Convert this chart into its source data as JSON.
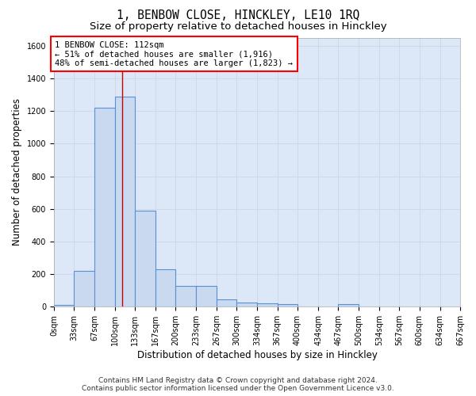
{
  "title": "1, BENBOW CLOSE, HINCKLEY, LE10 1RQ",
  "subtitle": "Size of property relative to detached houses in Hinckley",
  "xlabel": "Distribution of detached houses by size in Hinckley",
  "ylabel": "Number of detached properties",
  "bin_edges": [
    0,
    33,
    67,
    100,
    133,
    167,
    200,
    233,
    267,
    300,
    334,
    367,
    400,
    434,
    467,
    500,
    534,
    567,
    600,
    634,
    667
  ],
  "bar_heights": [
    10,
    220,
    1220,
    1290,
    590,
    230,
    130,
    130,
    45,
    25,
    20,
    15,
    0,
    0,
    15,
    0,
    0,
    0,
    0,
    0
  ],
  "bar_facecolor": "#c9d9f0",
  "bar_edgecolor": "#5b8fd4",
  "bar_linewidth": 0.8,
  "grid_color": "#d0d8e8",
  "bg_color": "#dce8f8",
  "fig_bg_color": "#ffffff",
  "vline_x": 112,
  "vline_color": "#cc0000",
  "ylim": [
    0,
    1650
  ],
  "yticks": [
    0,
    200,
    400,
    600,
    800,
    1000,
    1200,
    1400,
    1600
  ],
  "annotation_text": "1 BENBOW CLOSE: 112sqm\n← 51% of detached houses are smaller (1,916)\n48% of semi-detached houses are larger (1,823) →",
  "footer_line1": "Contains HM Land Registry data © Crown copyright and database right 2024.",
  "footer_line2": "Contains public sector information licensed under the Open Government Licence v3.0.",
  "title_fontsize": 10.5,
  "subtitle_fontsize": 9.5,
  "tick_fontsize": 7,
  "ylabel_fontsize": 8.5,
  "xlabel_fontsize": 8.5,
  "footer_fontsize": 6.5,
  "annotation_fontsize": 7.5
}
